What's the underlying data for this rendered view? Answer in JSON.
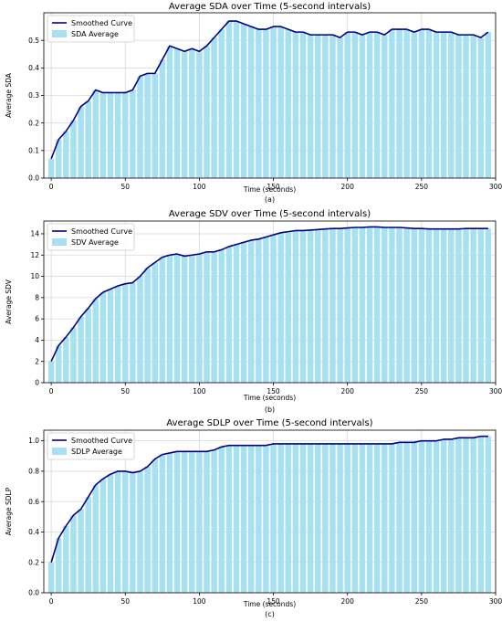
{
  "chart_data": [
    {
      "type": "bar",
      "title": "Average SDA over Time (5-second intervals)",
      "xlabel": "Time (seconds)",
      "ylabel": "Average SDA",
      "caption": "(a)",
      "xlim": [
        -5,
        300
      ],
      "ylim": [
        0,
        0.6
      ],
      "xticks": [
        0,
        50,
        100,
        150,
        200,
        250,
        300
      ],
      "yticks": [
        0.0,
        0.1,
        0.2,
        0.3,
        0.4,
        0.5
      ],
      "ytick_decimals": 1,
      "grid": true,
      "legend_position": "top-left",
      "colors": {
        "bar": "#a6e0f3",
        "line": "#000080"
      },
      "series": [
        {
          "name": "Smoothed Curve",
          "kind": "line"
        },
        {
          "name": "SDA Average",
          "kind": "bar"
        }
      ],
      "x": [
        0,
        5,
        10,
        15,
        20,
        25,
        30,
        35,
        40,
        45,
        50,
        55,
        60,
        65,
        70,
        75,
        80,
        85,
        90,
        95,
        100,
        105,
        110,
        115,
        120,
        125,
        130,
        135,
        140,
        145,
        150,
        155,
        160,
        165,
        170,
        175,
        180,
        185,
        190,
        195,
        200,
        205,
        210,
        215,
        220,
        225,
        230,
        235,
        240,
        245,
        250,
        255,
        260,
        265,
        270,
        275,
        280,
        285,
        290,
        295
      ],
      "values": [
        0.07,
        0.14,
        0.17,
        0.21,
        0.26,
        0.28,
        0.32,
        0.31,
        0.31,
        0.31,
        0.31,
        0.32,
        0.37,
        0.38,
        0.38,
        0.43,
        0.48,
        0.47,
        0.46,
        0.47,
        0.46,
        0.48,
        0.51,
        0.54,
        0.57,
        0.57,
        0.56,
        0.55,
        0.54,
        0.54,
        0.55,
        0.55,
        0.54,
        0.53,
        0.53,
        0.52,
        0.52,
        0.52,
        0.52,
        0.51,
        0.53,
        0.53,
        0.52,
        0.53,
        0.53,
        0.52,
        0.54,
        0.54,
        0.54,
        0.53,
        0.54,
        0.54,
        0.53,
        0.53,
        0.53,
        0.52,
        0.52,
        0.52,
        0.51,
        0.53
      ]
    },
    {
      "type": "bar",
      "title": "Average SDV over Time (5-second intervals)",
      "xlabel": "Time (seconds)",
      "ylabel": "Average SDV",
      "caption": "(b)",
      "xlim": [
        -5,
        300
      ],
      "ylim": [
        0,
        15.2
      ],
      "xticks": [
        0,
        50,
        100,
        150,
        200,
        250,
        300
      ],
      "yticks": [
        0,
        2,
        4,
        6,
        8,
        10,
        12,
        14
      ],
      "ytick_decimals": 0,
      "grid": true,
      "legend_position": "top-left",
      "colors": {
        "bar": "#a6e0f3",
        "line": "#000080"
      },
      "series": [
        {
          "name": "Smoothed Curve",
          "kind": "line"
        },
        {
          "name": "SDV Average",
          "kind": "bar"
        }
      ],
      "x": [
        0,
        5,
        10,
        15,
        20,
        25,
        30,
        35,
        40,
        45,
        50,
        55,
        60,
        65,
        70,
        75,
        80,
        85,
        90,
        95,
        100,
        105,
        110,
        115,
        120,
        125,
        130,
        135,
        140,
        145,
        150,
        155,
        160,
        165,
        170,
        175,
        180,
        185,
        190,
        195,
        200,
        205,
        210,
        215,
        220,
        225,
        230,
        235,
        240,
        245,
        250,
        255,
        260,
        265,
        270,
        275,
        280,
        285,
        290,
        295
      ],
      "values": [
        2.0,
        3.5,
        4.3,
        5.2,
        6.2,
        7.0,
        7.9,
        8.5,
        8.8,
        9.1,
        9.3,
        9.4,
        10.0,
        10.8,
        11.3,
        11.8,
        12.0,
        12.1,
        11.9,
        12.0,
        12.1,
        12.3,
        12.3,
        12.5,
        12.8,
        13.0,
        13.2,
        13.4,
        13.5,
        13.7,
        13.9,
        14.1,
        14.2,
        14.3,
        14.3,
        14.35,
        14.4,
        14.45,
        14.5,
        14.5,
        14.55,
        14.6,
        14.6,
        14.65,
        14.65,
        14.6,
        14.6,
        14.6,
        14.55,
        14.5,
        14.5,
        14.45,
        14.45,
        14.45,
        14.45,
        14.45,
        14.5,
        14.5,
        14.5,
        14.5
      ]
    },
    {
      "type": "bar",
      "title": "Average SDLP  over Time (5-second intervals)",
      "xlabel": "Time (seconds)",
      "ylabel": "Average SDLP",
      "caption": "(c)",
      "xlim": [
        -5,
        300
      ],
      "ylim": [
        0,
        1.07
      ],
      "xticks": [
        0,
        50,
        100,
        150,
        200,
        250,
        300
      ],
      "yticks": [
        0.0,
        0.2,
        0.4,
        0.6,
        0.8,
        1.0
      ],
      "ytick_decimals": 1,
      "grid": true,
      "legend_position": "top-left",
      "colors": {
        "bar": "#a6e0f3",
        "line": "#000080"
      },
      "series": [
        {
          "name": "Smoothed Curve",
          "kind": "line"
        },
        {
          "name": "SDLP  Average",
          "kind": "bar"
        }
      ],
      "x": [
        0,
        5,
        10,
        15,
        20,
        25,
        30,
        35,
        40,
        45,
        50,
        55,
        60,
        65,
        70,
        75,
        80,
        85,
        90,
        95,
        100,
        105,
        110,
        115,
        120,
        125,
        130,
        135,
        140,
        145,
        150,
        155,
        160,
        165,
        170,
        175,
        180,
        185,
        190,
        195,
        200,
        205,
        210,
        215,
        220,
        225,
        230,
        235,
        240,
        245,
        250,
        255,
        260,
        265,
        270,
        275,
        280,
        285,
        290,
        295
      ],
      "values": [
        0.2,
        0.36,
        0.44,
        0.51,
        0.55,
        0.63,
        0.71,
        0.75,
        0.78,
        0.8,
        0.8,
        0.79,
        0.8,
        0.83,
        0.88,
        0.91,
        0.92,
        0.93,
        0.93,
        0.93,
        0.93,
        0.93,
        0.94,
        0.96,
        0.97,
        0.97,
        0.97,
        0.97,
        0.97,
        0.97,
        0.98,
        0.98,
        0.98,
        0.98,
        0.98,
        0.98,
        0.98,
        0.98,
        0.98,
        0.98,
        0.98,
        0.98,
        0.98,
        0.98,
        0.98,
        0.98,
        0.98,
        0.99,
        0.99,
        0.99,
        1.0,
        1.0,
        1.0,
        1.01,
        1.01,
        1.02,
        1.02,
        1.02,
        1.03,
        1.03
      ]
    }
  ]
}
